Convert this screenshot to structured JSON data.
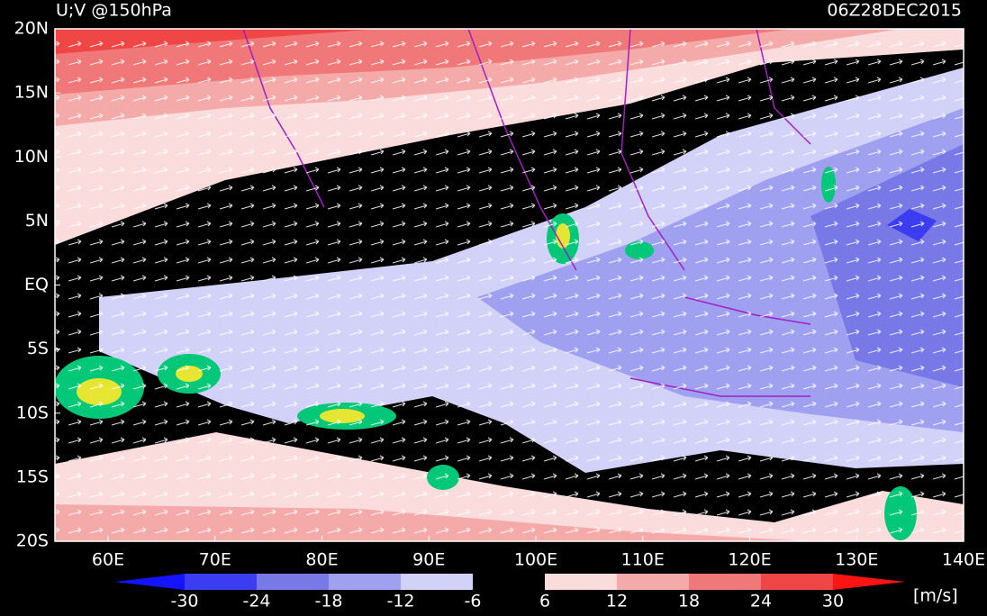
{
  "header": {
    "title": "U;V @150hPa",
    "time": "06Z28DEC2015"
  },
  "map": {
    "lat_labels": [
      "20N",
      "15N",
      "10N",
      "5N",
      "EQ",
      "5S",
      "10S",
      "15S",
      "20S"
    ],
    "lon_labels": [
      "60E",
      "70E",
      "80E",
      "90E",
      "100E",
      "110E",
      "120E",
      "130E",
      "140E"
    ]
  },
  "colorbar": {
    "ticks": [
      -30,
      -24,
      -18,
      -12,
      -6,
      6,
      12,
      18,
      24,
      30
    ],
    "colors": [
      "#1414ff",
      "#3c3cf0",
      "#7878e6",
      "#a0a0f0",
      "#d2d2f8",
      "#000000",
      "#fadcdc",
      "#f5aaaa",
      "#f07878",
      "#f04646",
      "#ff1414"
    ],
    "unit": "[m/s]"
  }
}
